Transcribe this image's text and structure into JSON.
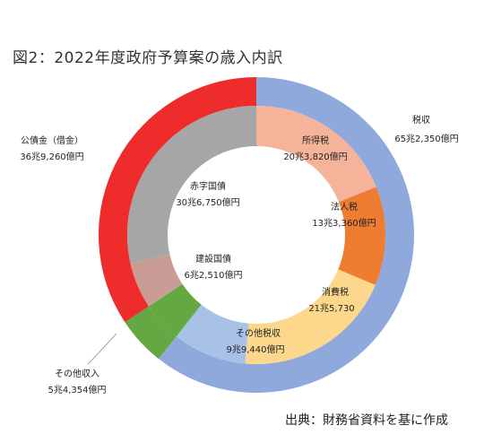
{
  "title": "図2：2022年度政府予算案の歳入内訳",
  "source": "出典：財務省資料を基に作成",
  "chart_data": {
    "type": "pie",
    "variant": "sunburst-donut",
    "unit": "億円",
    "outer": [
      {
        "name": "税収",
        "display": "65兆2,350億円",
        "value": 652350,
        "color": "#8fa9dc"
      },
      {
        "name": "その他収入",
        "display": "5兆4,354億円",
        "value": 54354,
        "color": "#63a843"
      },
      {
        "name": "公債金（借金）",
        "display": "36兆9,260億円",
        "value": 369260,
        "color": "#ee2c2c"
      }
    ],
    "inner": [
      {
        "name": "所得税",
        "display": "20兆3,820億円",
        "value": 203820,
        "color": "#f5b49a"
      },
      {
        "name": "法人税",
        "display": "13兆3,360億円",
        "value": 133360,
        "color": "#ee7d31"
      },
      {
        "name": "消費税",
        "display": "21兆5,730",
        "value": 215730,
        "color": "#fdd88c"
      },
      {
        "name": "その他税収",
        "display": "9兆9,440億円",
        "value": 99440,
        "color": "#a7c1e7"
      },
      {
        "name": "その他収入",
        "display": "",
        "value": 54354,
        "color": "#63a843"
      },
      {
        "name": "建設国債",
        "display": "6兆2,510億円",
        "value": 62510,
        "color": "#c99d95"
      },
      {
        "name": "赤字国債",
        "display": "30兆6,750億円",
        "value": 306750,
        "color": "#a6a6a6"
      }
    ]
  }
}
